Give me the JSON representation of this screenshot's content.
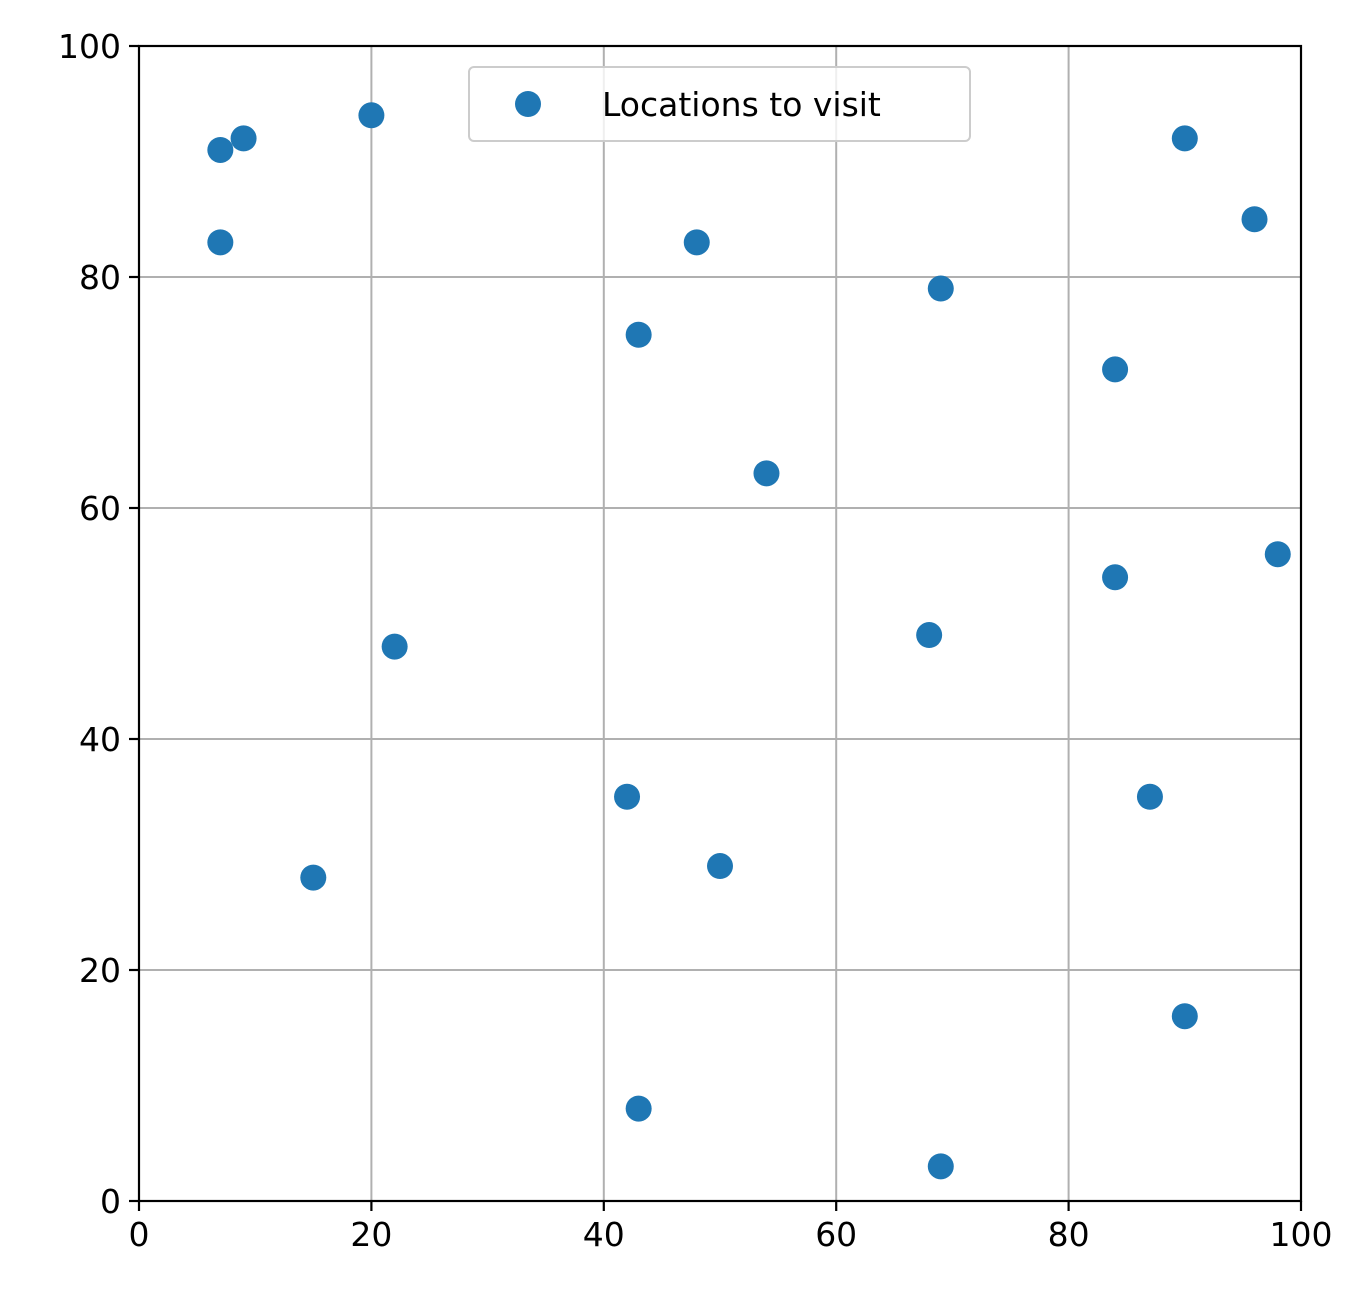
{
  "chart_data": {
    "type": "scatter",
    "series": [
      {
        "name": "Locations to visit",
        "color": "#1f77b4",
        "points": [
          [
            7,
            91
          ],
          [
            9,
            92
          ],
          [
            20,
            94
          ],
          [
            7,
            83
          ],
          [
            48,
            83
          ],
          [
            43,
            75
          ],
          [
            69,
            79
          ],
          [
            90,
            92
          ],
          [
            96,
            85
          ],
          [
            84,
            72
          ],
          [
            54,
            63
          ],
          [
            98,
            56
          ],
          [
            84,
            54
          ],
          [
            68,
            49
          ],
          [
            22,
            48
          ],
          [
            42,
            35
          ],
          [
            87,
            35
          ],
          [
            50,
            29
          ],
          [
            15,
            28
          ],
          [
            90,
            16
          ],
          [
            43,
            8
          ],
          [
            69,
            3
          ]
        ]
      }
    ],
    "xlim": [
      0,
      100
    ],
    "ylim": [
      0,
      100
    ],
    "xticks": [
      "0",
      "20",
      "40",
      "60",
      "80",
      "100"
    ],
    "yticks": [
      "0",
      "20",
      "40",
      "60",
      "80",
      "100"
    ],
    "grid": true,
    "legend_position": "top-center"
  }
}
